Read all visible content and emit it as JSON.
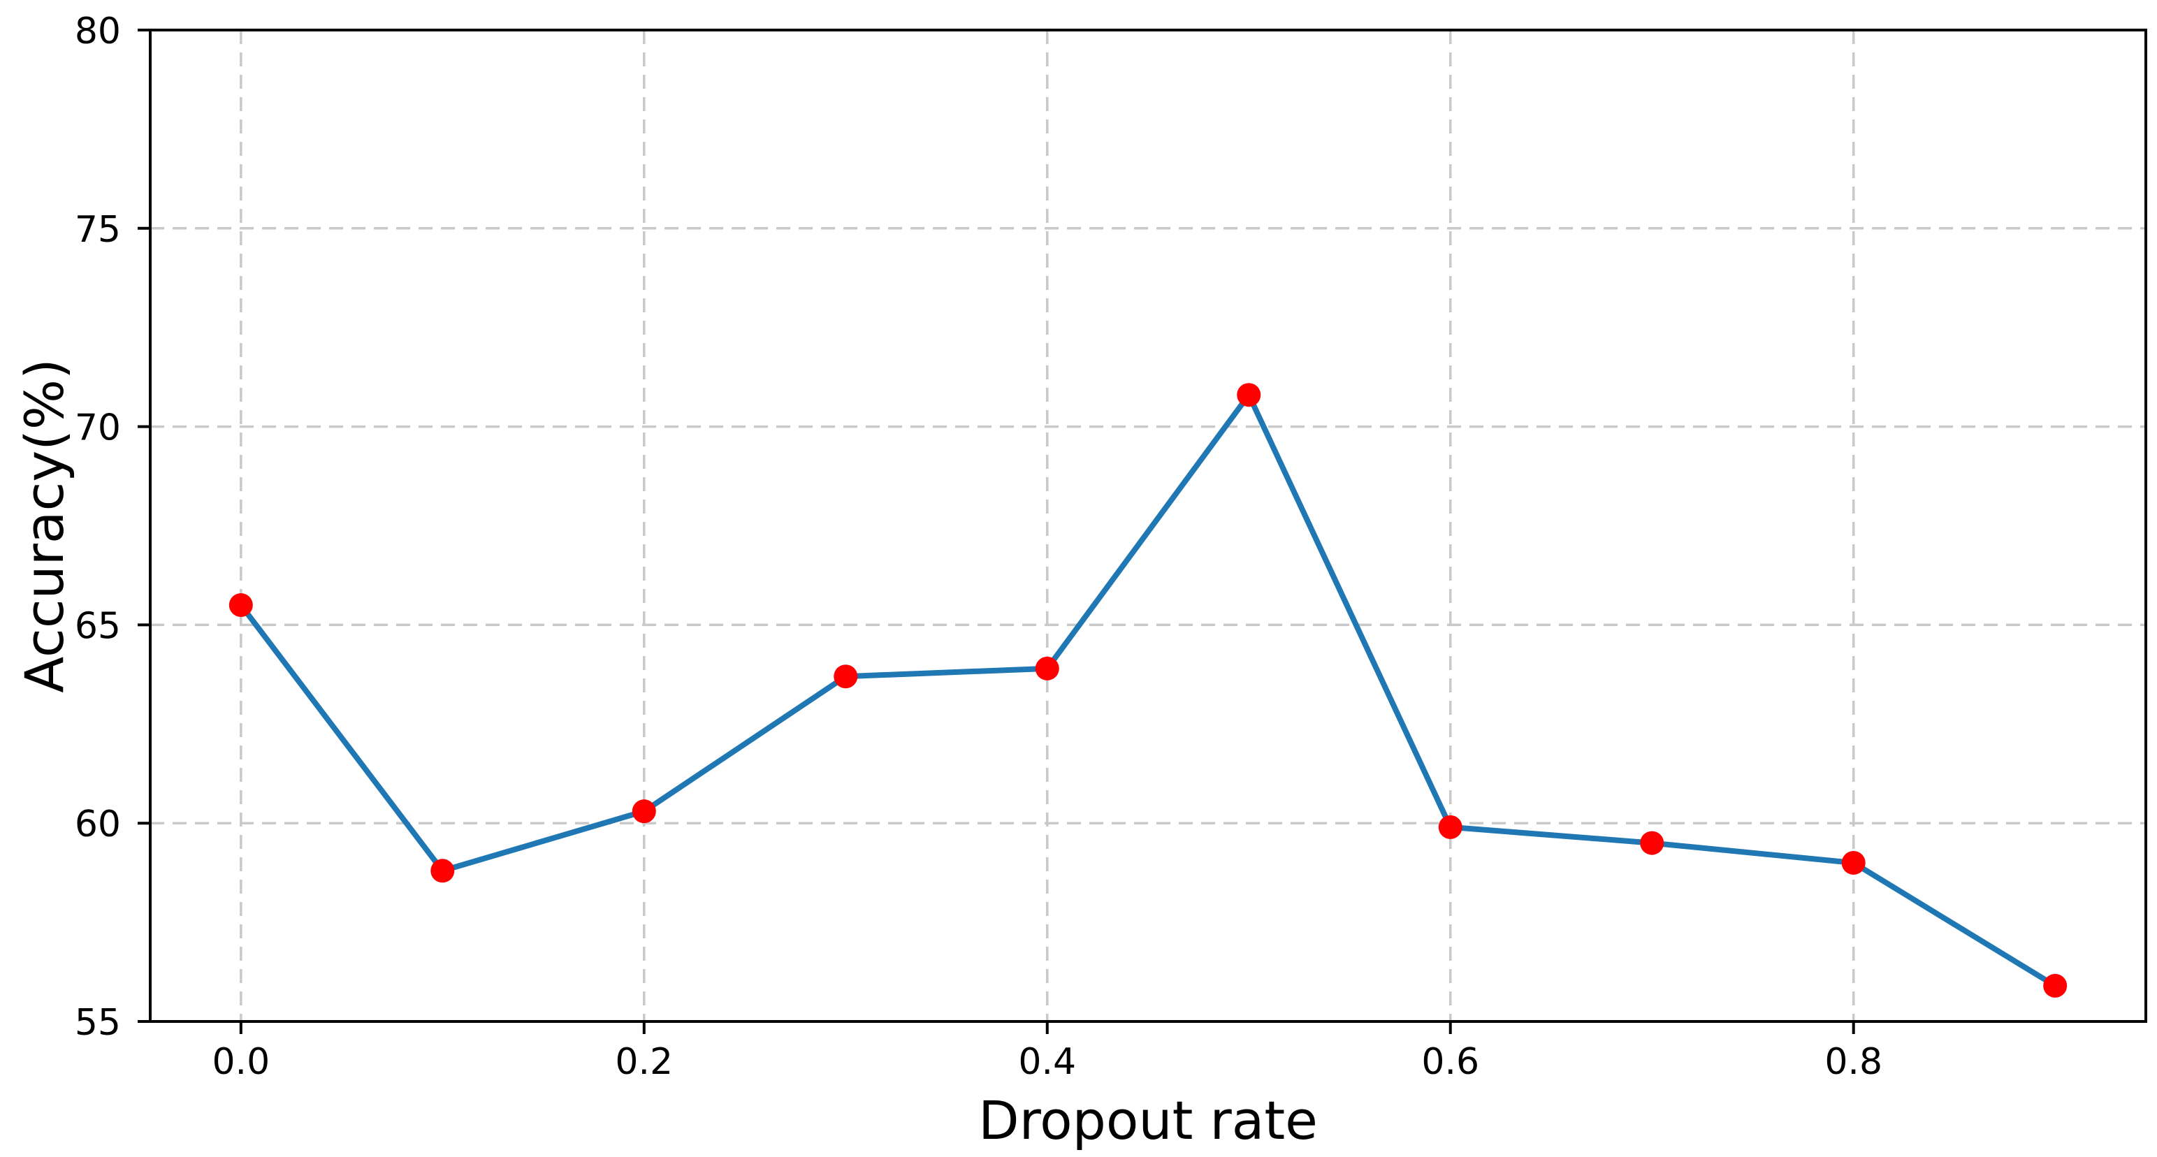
{
  "chart_data": {
    "type": "line",
    "xlabel": "Dropout rate",
    "ylabel": "Accuracy(%)",
    "x": [
      0.0,
      0.1,
      0.2,
      0.3,
      0.4,
      0.5,
      0.6,
      0.7,
      0.8,
      0.9
    ],
    "series": [
      {
        "name": "accuracy",
        "values": [
          65.5,
          58.8,
          60.3,
          63.7,
          63.9,
          70.8,
          59.9,
          59.5,
          59.0,
          55.9
        ]
      }
    ],
    "xticks": [
      0.0,
      0.2,
      0.4,
      0.6,
      0.8
    ],
    "xtick_labels": [
      "0.0",
      "0.2",
      "0.4",
      "0.6",
      "0.8"
    ],
    "yticks": [
      55,
      60,
      65,
      70,
      75,
      80
    ],
    "ytick_labels": [
      "55",
      "60",
      "65",
      "70",
      "75",
      "80"
    ],
    "xlim": [
      -0.045,
      0.945
    ],
    "ylim": [
      55,
      80
    ],
    "grid": true,
    "grid_style": "dashed",
    "legend": false,
    "line_color": "#1f77b4",
    "marker": "circle",
    "marker_color": "#ff0000"
  }
}
